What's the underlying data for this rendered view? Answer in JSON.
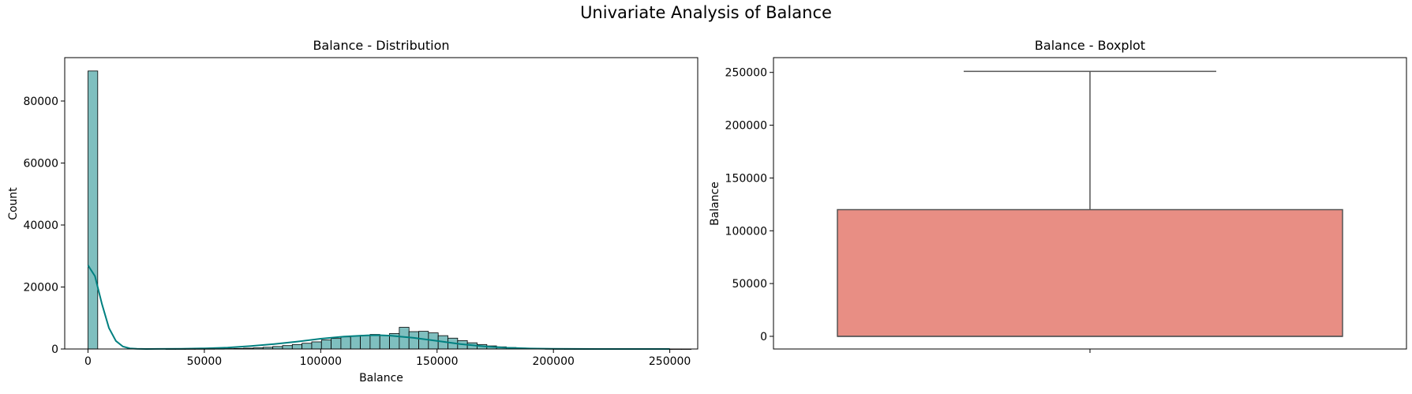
{
  "figure": {
    "suptitle": "Univariate Analysis of Balance"
  },
  "chart_data": [
    {
      "type": "bar",
      "subtype": "histogram-with-kde",
      "title": "Balance - Distribution",
      "xlabel": "Balance",
      "ylabel": "Count",
      "xlim": [
        -10000,
        262000
      ],
      "ylim": [
        0,
        94000
      ],
      "xticks": [
        0,
        50000,
        100000,
        150000,
        200000,
        250000
      ],
      "xtick_labels": [
        "0",
        "50000",
        "100000",
        "150000",
        "200000",
        "250000"
      ],
      "yticks": [
        0,
        20000,
        40000,
        60000,
        80000
      ],
      "ytick_labels": [
        "0",
        "20000",
        "40000",
        "60000",
        "80000"
      ],
      "bin_width": 4180,
      "bin_start": 0,
      "counts": [
        89700,
        0,
        0,
        0,
        0,
        0,
        0,
        0,
        10,
        20,
        30,
        40,
        60,
        80,
        120,
        170,
        260,
        380,
        560,
        800,
        1100,
        1450,
        1850,
        2300,
        2900,
        3400,
        3900,
        4200,
        4400,
        4700,
        4400,
        5000,
        7000,
        5600,
        5700,
        5200,
        4300,
        3500,
        2700,
        2000,
        1450,
        1000,
        700,
        480,
        300,
        190,
        110,
        70,
        40,
        25,
        15,
        10,
        5,
        3,
        2,
        1,
        1,
        1,
        1,
        1,
        1,
        1
      ],
      "kde_x": [
        0,
        3000,
        6000,
        9000,
        12000,
        15000,
        18000,
        21000,
        25000,
        30000,
        40000,
        50000,
        60000,
        70000,
        80000,
        90000,
        100000,
        110000,
        120000,
        125000,
        130000,
        140000,
        150000,
        160000,
        170000,
        180000,
        190000,
        200000,
        220000,
        250000
      ],
      "kde_y": [
        27000,
        23500,
        14500,
        6800,
        2600,
        800,
        200,
        50,
        0,
        20,
        80,
        200,
        450,
        950,
        1600,
        2400,
        3300,
        4000,
        4400,
        4450,
        4300,
        3600,
        2600,
        1600,
        850,
        400,
        160,
        60,
        10,
        0
      ],
      "bar_color": "#7fbfbf",
      "bar_edge": "#000000",
      "kde_color": "#008080",
      "grid": false
    },
    {
      "type": "boxplot",
      "title": "Balance - Boxplot",
      "xlabel": "",
      "ylabel": "Balance",
      "ylim": [
        -12000,
        264000
      ],
      "yticks": [
        0,
        50000,
        100000,
        150000,
        200000,
        250000
      ],
      "ytick_labels": [
        "0",
        "50000",
        "100000",
        "150000",
        "200000",
        "250000"
      ],
      "min": 0,
      "q1": 0,
      "median": 0,
      "q3": 120000,
      "max": 251000,
      "box_color": "#e88e84",
      "line_color": "#555555",
      "grid": false
    }
  ]
}
